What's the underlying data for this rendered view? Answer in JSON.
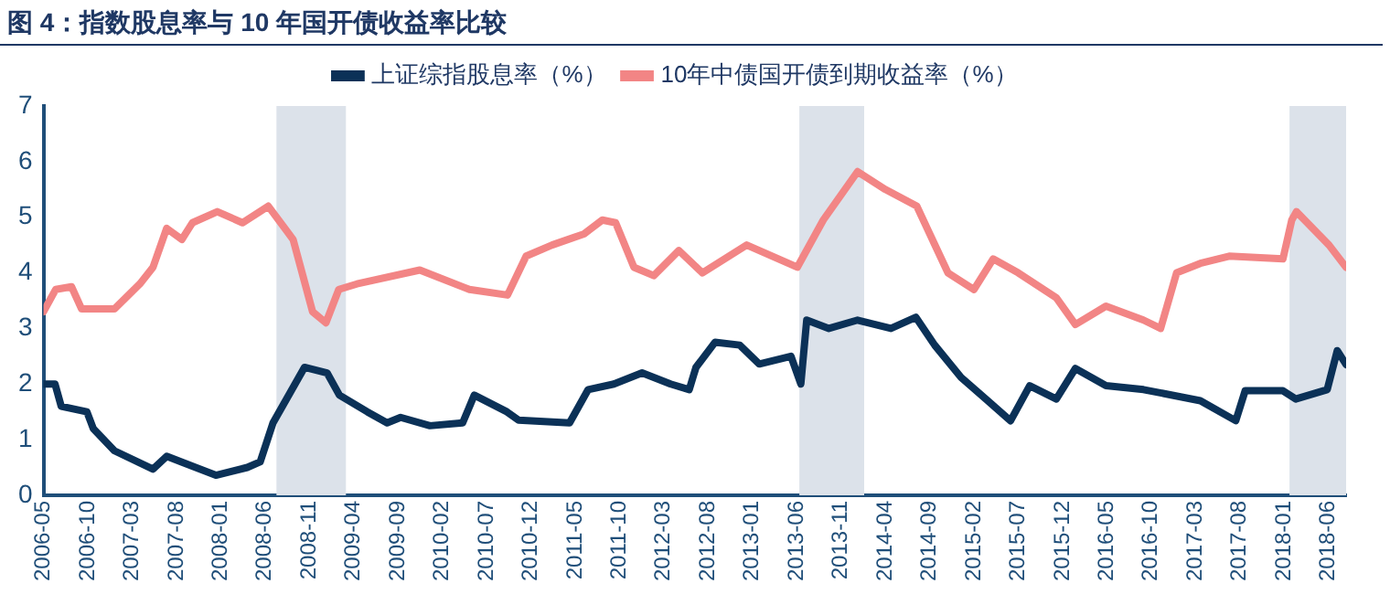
{
  "chart_data": {
    "type": "line",
    "title": "图 4：指数股息率与 10 年国开债收益率比较",
    "legend": "top",
    "marker": "none",
    "xlim": [
      "2006-05",
      "2018-08"
    ],
    "xticks": [
      "2006-05",
      "2006-10",
      "2007-03",
      "2007-08",
      "2008-01",
      "2008-06",
      "2008-11",
      "2009-04",
      "2009-09",
      "2010-02",
      "2010-07",
      "2010-12",
      "2011-05",
      "2011-10",
      "2012-03",
      "2012-08",
      "2013-01",
      "2013-06",
      "2013-11",
      "2014-04",
      "2014-09",
      "2015-02",
      "2015-07",
      "2015-12",
      "2016-05",
      "2016-10",
      "2017-03",
      "2017-08",
      "2018-01",
      "2018-06"
    ],
    "ylim": [
      0,
      7
    ],
    "yticks": [
      0,
      1,
      2,
      3,
      4,
      5,
      6,
      7
    ],
    "bands": [
      {
        "axis": "x",
        "from": "2008-07-10",
        "to": "2009-03-05",
        "color": "#dce2ea"
      },
      {
        "axis": "x",
        "from": "2013-06-10",
        "to": "2014-01-20",
        "color": "#dce2ea"
      },
      {
        "axis": "x",
        "from": "2018-01-20",
        "to": "2018-08-01",
        "color": "#dce2ea"
      }
    ],
    "series": [
      {
        "name": "上证综指股息率（%）",
        "color": "#0b3157",
        "x": [
          "2006-05-01",
          "2006-06-10",
          "2006-07-01",
          "2006-09-28",
          "2006-10-20",
          "2007-01-01",
          "2007-05-12",
          "2007-06-28",
          "2007-12-15",
          "2008-04-01",
          "2008-05-15",
          "2008-06-28",
          "2008-10-15",
          "2009-01-01",
          "2009-02-12",
          "2009-05-18",
          "2009-07-25",
          "2009-09-10",
          "2009-12-20",
          "2010-04-10",
          "2010-05-20",
          "2010-09-10",
          "2010-10-20",
          "2011-04-12",
          "2011-06-15",
          "2011-09-12",
          "2011-12-18",
          "2012-03-25",
          "2012-05-28",
          "2012-06-20",
          "2012-08-25",
          "2012-11-18",
          "2013-01-25",
          "2013-05-12",
          "2013-06-15",
          "2013-07-05",
          "2013-09-20",
          "2013-12-28",
          "2014-04-20",
          "2014-07-15",
          "2014-09-18",
          "2014-12-18",
          "2015-03-12",
          "2015-06-05",
          "2015-08-10",
          "2015-11-10",
          "2016-01-15",
          "2016-04-28",
          "2016-09-05",
          "2017-03-18",
          "2017-07-18",
          "2017-08-20",
          "2017-12-28",
          "2018-02-10",
          "2018-05-28",
          "2018-07-01",
          "2018-08-01"
        ],
        "values": [
          2.0,
          2.0,
          1.6,
          1.5,
          1.2,
          0.8,
          0.47,
          0.7,
          0.36,
          0.5,
          0.6,
          1.3,
          2.3,
          2.2,
          1.8,
          1.5,
          1.3,
          1.4,
          1.25,
          1.3,
          1.8,
          1.5,
          1.35,
          1.3,
          1.9,
          2.0,
          2.2,
          2.0,
          1.9,
          2.3,
          2.75,
          2.7,
          2.36,
          2.5,
          2.0,
          3.15,
          3.0,
          3.15,
          3.0,
          3.2,
          2.7,
          2.12,
          1.73,
          1.34,
          1.97,
          1.73,
          2.28,
          1.97,
          1.9,
          1.7,
          1.34,
          1.88,
          1.88,
          1.73,
          1.9,
          2.6,
          2.35
        ]
      },
      {
        "name": "10年中债国开债到期收益率（%）",
        "color": "#f28585",
        "x": [
          "2006-05-01",
          "2006-06-12",
          "2006-08-06",
          "2006-09-10",
          "2007-01-01",
          "2007-03-28",
          "2007-05-12",
          "2007-06-28",
          "2007-08-20",
          "2007-09-25",
          "2007-12-20",
          "2008-03-15",
          "2008-06-12",
          "2008-09-06",
          "2008-11-12",
          "2008-12-28",
          "2009-02-10",
          "2009-04-12",
          "2009-11-15",
          "2010-05-03",
          "2010-09-12",
          "2010-11-15",
          "2011-02-12",
          "2011-06-01",
          "2011-08-03",
          "2011-09-18",
          "2011-11-20",
          "2012-01-28",
          "2012-04-22",
          "2012-07-12",
          "2012-12-12",
          "2013-06-03",
          "2013-09-01",
          "2013-12-28",
          "2014-04-01",
          "2014-07-18",
          "2014-11-03",
          "2015-02-01",
          "2015-04-06",
          "2015-07-01",
          "2015-11-10",
          "2016-01-15",
          "2016-04-28",
          "2016-09-05",
          "2016-11-03",
          "2016-12-28",
          "2017-03-18",
          "2017-06-25",
          "2017-12-28",
          "2018-01-28",
          "2018-02-12",
          "2018-06-03",
          "2018-08-01"
        ],
        "values": [
          3.3,
          3.7,
          3.75,
          3.35,
          3.35,
          3.8,
          4.1,
          4.8,
          4.6,
          4.9,
          5.1,
          4.9,
          5.2,
          4.6,
          3.3,
          3.1,
          3.7,
          3.8,
          4.05,
          3.7,
          3.6,
          4.3,
          4.5,
          4.7,
          4.95,
          4.9,
          4.1,
          3.95,
          4.4,
          4.0,
          4.5,
          4.1,
          4.95,
          5.82,
          5.5,
          5.2,
          4.0,
          3.7,
          4.25,
          4.0,
          3.55,
          3.07,
          3.4,
          3.15,
          3.0,
          4.0,
          4.17,
          4.3,
          4.25,
          4.95,
          5.1,
          4.5,
          4.1
        ]
      }
    ]
  }
}
